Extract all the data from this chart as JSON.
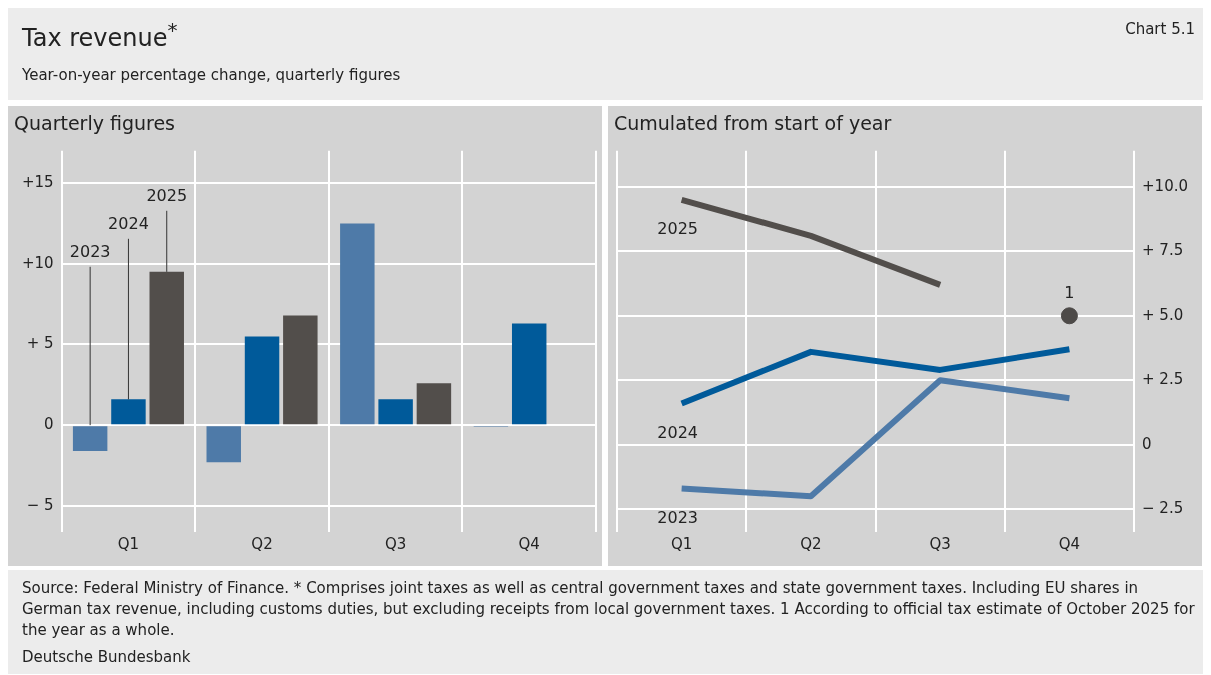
{
  "chart_data": [
    {
      "type": "other",
      "title": "Tax revenue$^{*}$",
      "subtitle": "Year-on-year percentage change, quarterly figures",
      "annotations": [
        "Chart 5.1",
        "Source: Federal Ministry of Finance. * Comprises joint taxes as well as central government taxes and state government taxes. Including EU shares in German tax revenue, including customs duties, but excluding receipts from local government taxes. 1 According to official tax estimate of October 2025 for the year as a whole.",
        "Deutsche Bundesbank"
      ]
    },
    {
      "type": "bar",
      "title": "Quarterly figures",
      "categories": [
        "Q1",
        "Q2",
        "Q3",
        "Q4"
      ],
      "series": [
        {
          "name": "2023",
          "color": "#4e7aa8",
          "values": [
            -1.6,
            -2.3,
            12.5,
            -0.1
          ]
        },
        {
          "name": "2024",
          "color": "#005a9a",
          "values": [
            1.6,
            5.5,
            1.6,
            6.3
          ]
        },
        {
          "name": "2025",
          "color": "#524e4b",
          "values": [
            9.5,
            6.8,
            2.6,
            null
          ]
        }
      ],
      "ylim": [
        -6,
        17
      ],
      "yticks": [
        {
          "value": -5,
          "label": "− 5"
        },
        0,
        {
          "value": 5,
          "label": "+ 5"
        },
        {
          "value": 10,
          "label": "+10"
        },
        {
          "value": 15,
          "label": "+15"
        }
      ],
      "grid": true,
      "legend": false
    },
    {
      "type": "line",
      "title": "Cumulated from start of year",
      "categories": [
        "Q1",
        "Q2",
        "Q3",
        "Q4"
      ],
      "series": [
        {
          "name": "2023",
          "color": "#4e7aa8",
          "values": [
            -1.7,
            -2.0,
            2.5,
            1.8
          ],
          "axis": "y2"
        },
        {
          "name": "2024",
          "color": "#005a9a",
          "values": [
            1.6,
            3.6,
            2.9,
            3.7
          ],
          "axis": "y2"
        },
        {
          "name": "2025",
          "color": "#524e4b",
          "values": [
            9.5,
            8.1,
            6.2,
            null
          ],
          "axis": "y2"
        },
        {
          "type": "scatter",
          "color": "#4d4a48",
          "values": [
            null,
            null,
            null,
            5.0
          ],
          "axis": "y2",
          "marker": "circle"
        }
      ],
      "y2lim": [
        -3,
        11.4
      ],
      "y2ticks": [
        {
          "value": -2.5,
          "label": "− 2.5"
        },
        0,
        {
          "value": 2.5,
          "label": "+ 2.5"
        },
        {
          "value": 5,
          "label": "+ 5.0"
        },
        {
          "value": 7.5,
          "label": "+ 7.5"
        },
        {
          "value": 10,
          "label": "+10.0"
        }
      ],
      "grid": true,
      "legend": false,
      "line_style": "solid",
      "annotations": [
        "1"
      ]
    }
  ]
}
